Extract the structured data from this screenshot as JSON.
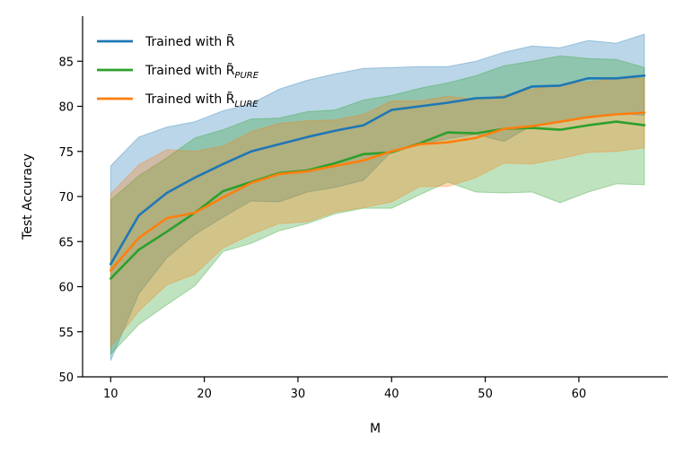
{
  "chart_data": {
    "type": "line",
    "title": "",
    "xlabel": "M",
    "ylabel": "Test Accuracy",
    "xlim": [
      7,
      69.5
    ],
    "ylim": [
      50,
      90
    ],
    "xticks": [
      10,
      20,
      30,
      40,
      50,
      60
    ],
    "yticks": [
      50,
      55,
      60,
      65,
      70,
      75,
      80,
      85
    ],
    "grid": false,
    "legend_position": "top-left",
    "x": [
      10,
      13,
      16,
      19,
      22,
      25,
      28,
      31,
      34,
      37,
      40,
      43,
      46,
      49,
      52,
      55,
      58,
      61,
      64,
      67
    ],
    "series": [
      {
        "name": "Trained with R̃",
        "legend_base": "Trained with R̃",
        "legend_sub": "",
        "color": "#1f77b4",
        "values": [
          62.5,
          67.9,
          70.4,
          72.1,
          73.6,
          75.0,
          75.8,
          76.6,
          77.3,
          77.9,
          79.6,
          80.0,
          80.4,
          80.9,
          81.0,
          82.2,
          82.3,
          83.1,
          83.1,
          83.4
        ],
        "upper": [
          73.4,
          76.6,
          77.7,
          78.3,
          79.5,
          80.3,
          81.9,
          82.9,
          83.6,
          84.2,
          84.3,
          84.4,
          84.4,
          85.0,
          86.0,
          86.7,
          86.5,
          87.3,
          87.0,
          88.0
        ],
        "lower": [
          51.8,
          59.2,
          63.2,
          65.8,
          67.7,
          69.5,
          69.4,
          70.5,
          71.0,
          71.8,
          75.0,
          75.8,
          76.4,
          76.9,
          76.1,
          77.9,
          78.2,
          78.9,
          79.2,
          79.0
        ]
      },
      {
        "name": "Trained with R̃ PURE",
        "legend_base": "Trained with R̃",
        "legend_sub": "PURE",
        "color": "#2ca02c",
        "values": [
          60.9,
          64.1,
          66.1,
          68.2,
          70.6,
          71.6,
          72.6,
          72.9,
          73.7,
          74.7,
          74.9,
          75.9,
          77.1,
          77.0,
          77.5,
          77.6,
          77.4,
          77.9,
          78.3,
          77.9
        ],
        "upper": [
          69.6,
          72.3,
          74.3,
          76.5,
          77.4,
          78.6,
          78.7,
          79.4,
          79.6,
          80.7,
          81.2,
          82.0,
          82.6,
          83.4,
          84.5,
          85.0,
          85.6,
          85.3,
          85.2,
          84.3
        ],
        "lower": [
          52.5,
          55.8,
          58.0,
          60.1,
          63.9,
          64.8,
          66.2,
          67.0,
          68.1,
          68.7,
          68.7,
          70.2,
          71.6,
          70.5,
          70.4,
          70.5,
          69.3,
          70.5,
          71.4,
          71.3
        ]
      },
      {
        "name": "Trained with R̃ LURE",
        "legend_base": "Trained with R̃",
        "legend_sub": "LURE",
        "color": "#ff7f0e",
        "values": [
          61.8,
          65.4,
          67.6,
          68.2,
          69.9,
          71.5,
          72.5,
          72.8,
          73.4,
          74.0,
          75.0,
          75.8,
          76.0,
          76.5,
          77.5,
          77.8,
          78.3,
          78.8,
          79.1,
          79.3
        ],
        "upper": [
          70.3,
          73.5,
          75.2,
          75.0,
          75.6,
          77.2,
          78.1,
          78.4,
          78.5,
          79.1,
          80.6,
          80.6,
          81.1,
          80.8,
          81.2,
          81.9,
          82.4,
          82.7,
          83.1,
          83.1
        ],
        "lower": [
          53.3,
          57.3,
          60.2,
          61.4,
          64.3,
          65.8,
          67.0,
          67.2,
          68.3,
          68.8,
          69.4,
          71.1,
          71.1,
          72.1,
          73.7,
          73.6,
          74.2,
          74.9,
          75.0,
          75.4
        ]
      }
    ]
  }
}
